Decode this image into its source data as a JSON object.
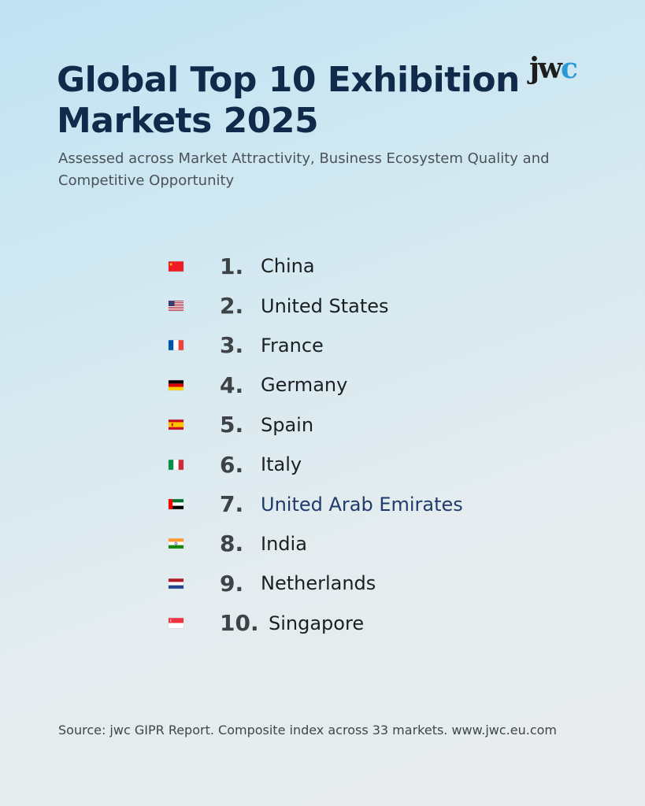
{
  "header": {
    "title": "Global Top 10 Exhibition Markets 2025",
    "subtitle": "Assessed across Market Attractivity, Business Ecosystem Quality and Competitive Opportunity",
    "logo_main": "jw",
    "logo_accent": "c"
  },
  "ranking": [
    {
      "rank": "1.",
      "country": "China",
      "flag": "china-flag"
    },
    {
      "rank": "2.",
      "country": "United States",
      "flag": "usa-flag"
    },
    {
      "rank": "3.",
      "country": "France",
      "flag": "france-flag"
    },
    {
      "rank": "4.",
      "country": "Germany",
      "flag": "germany-flag"
    },
    {
      "rank": "5.",
      "country": "Spain",
      "flag": "spain-flag"
    },
    {
      "rank": "6.",
      "country": "Italy",
      "flag": "italy-flag"
    },
    {
      "rank": "7.",
      "country": "United Arab Emirates",
      "flag": "uae-flag"
    },
    {
      "rank": "8.",
      "country": "India",
      "flag": "india-flag"
    },
    {
      "rank": "9.",
      "country": "Netherlands",
      "flag": "netherlands-flag"
    },
    {
      "rank": "10.",
      "country": "Singapore",
      "flag": "singapore-flag"
    }
  ],
  "footer": {
    "source": "Source: jwc GIPR Report. Composite index across 33 markets. www.jwc.eu.com"
  },
  "colors": {
    "title": "#0f2a4a",
    "logo_accent": "#2a9ad6",
    "highlight_country": "#1f3a6b"
  }
}
